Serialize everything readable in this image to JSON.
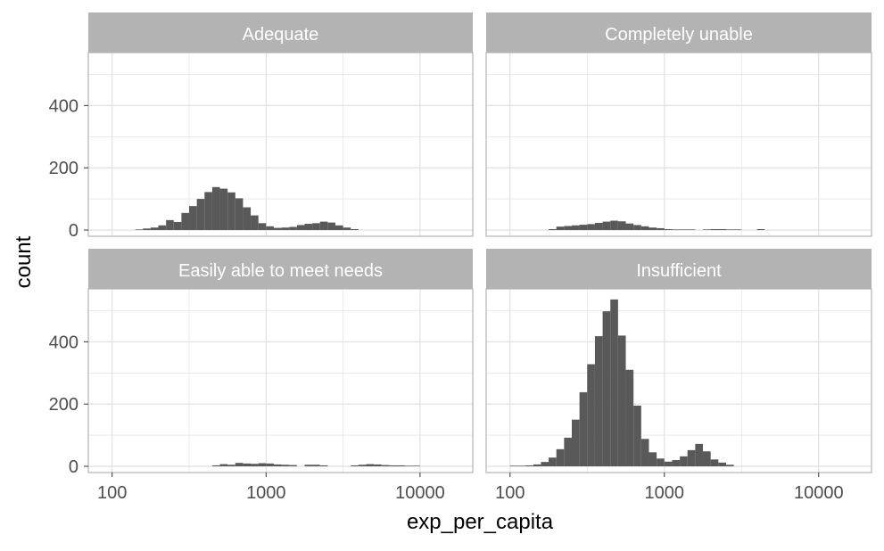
{
  "chart_data": {
    "type": "bar",
    "xlabel": "exp_per_capita",
    "ylabel": "count",
    "x_scale": "log10",
    "xlim": [
      70,
      22000
    ],
    "ylim": [
      -20,
      570
    ],
    "x_ticks": [
      100,
      1000,
      10000
    ],
    "x_tick_labels": [
      "100",
      "1000",
      "10000"
    ],
    "y_ticks": [
      0,
      200,
      400
    ],
    "y_tick_labels": [
      "0",
      "200",
      "400"
    ],
    "grid": true,
    "facets": [
      {
        "label": "Adequate",
        "bins": [
          {
            "x0": 141.3,
            "x1": 158.5,
            "count": 2
          },
          {
            "x0": 158.5,
            "x1": 177.8,
            "count": 5
          },
          {
            "x0": 177.8,
            "x1": 199.5,
            "count": 8
          },
          {
            "x0": 199.5,
            "x1": 223.9,
            "count": 15
          },
          {
            "x0": 223.9,
            "x1": 251.2,
            "count": 32
          },
          {
            "x0": 251.2,
            "x1": 281.8,
            "count": 26
          },
          {
            "x0": 281.8,
            "x1": 316.2,
            "count": 55
          },
          {
            "x0": 316.2,
            "x1": 354.8,
            "count": 77
          },
          {
            "x0": 354.8,
            "x1": 398.1,
            "count": 100
          },
          {
            "x0": 398.1,
            "x1": 446.7,
            "count": 122
          },
          {
            "x0": 446.7,
            "x1": 501.2,
            "count": 138
          },
          {
            "x0": 501.2,
            "x1": 562.3,
            "count": 133
          },
          {
            "x0": 562.3,
            "x1": 631.0,
            "count": 121
          },
          {
            "x0": 631.0,
            "x1": 707.9,
            "count": 102
          },
          {
            "x0": 707.9,
            "x1": 794.3,
            "count": 73
          },
          {
            "x0": 794.3,
            "x1": 891.3,
            "count": 47
          },
          {
            "x0": 891.3,
            "x1": 1000.0,
            "count": 22
          },
          {
            "x0": 1000.0,
            "x1": 1122.0,
            "count": 12
          },
          {
            "x0": 1122.0,
            "x1": 1258.9,
            "count": 7
          },
          {
            "x0": 1258.9,
            "x1": 1412.5,
            "count": 8
          },
          {
            "x0": 1412.5,
            "x1": 1584.9,
            "count": 10
          },
          {
            "x0": 1584.9,
            "x1": 1778.3,
            "count": 16
          },
          {
            "x0": 1778.3,
            "x1": 1995.3,
            "count": 20
          },
          {
            "x0": 1995.3,
            "x1": 2238.7,
            "count": 22
          },
          {
            "x0": 2238.7,
            "x1": 2511.9,
            "count": 27
          },
          {
            "x0": 2511.9,
            "x1": 2818.4,
            "count": 24
          },
          {
            "x0": 2818.4,
            "x1": 3162.3,
            "count": 15
          },
          {
            "x0": 3162.3,
            "x1": 3548.1,
            "count": 8
          },
          {
            "x0": 3548.1,
            "x1": 3981.1,
            "count": 3
          }
        ]
      },
      {
        "label": "Completely unable",
        "bins": [
          {
            "x0": 177.8,
            "x1": 199.5,
            "count": 3
          },
          {
            "x0": 199.5,
            "x1": 223.9,
            "count": 11
          },
          {
            "x0": 223.9,
            "x1": 251.2,
            "count": 13
          },
          {
            "x0": 251.2,
            "x1": 281.8,
            "count": 15
          },
          {
            "x0": 281.8,
            "x1": 316.2,
            "count": 17
          },
          {
            "x0": 316.2,
            "x1": 354.8,
            "count": 19
          },
          {
            "x0": 354.8,
            "x1": 398.1,
            "count": 23
          },
          {
            "x0": 398.1,
            "x1": 446.7,
            "count": 27
          },
          {
            "x0": 446.7,
            "x1": 501.2,
            "count": 30
          },
          {
            "x0": 501.2,
            "x1": 562.3,
            "count": 28
          },
          {
            "x0": 562.3,
            "x1": 631.0,
            "count": 21
          },
          {
            "x0": 631.0,
            "x1": 707.9,
            "count": 16
          },
          {
            "x0": 707.9,
            "x1": 794.3,
            "count": 12
          },
          {
            "x0": 794.3,
            "x1": 891.3,
            "count": 8
          },
          {
            "x0": 891.3,
            "x1": 1000.0,
            "count": 6
          },
          {
            "x0": 1000.0,
            "x1": 1122.0,
            "count": 3
          },
          {
            "x0": 1122.0,
            "x1": 1258.9,
            "count": 2
          },
          {
            "x0": 1258.9,
            "x1": 1412.5,
            "count": 2
          },
          {
            "x0": 1412.5,
            "x1": 1584.9,
            "count": 2
          },
          {
            "x0": 1778.3,
            "x1": 1995.3,
            "count": 2
          },
          {
            "x0": 1995.3,
            "x1": 2238.7,
            "count": 3
          },
          {
            "x0": 2238.7,
            "x1": 2511.9,
            "count": 3
          },
          {
            "x0": 2511.9,
            "x1": 2818.4,
            "count": 2
          },
          {
            "x0": 2818.4,
            "x1": 3162.3,
            "count": 2
          },
          {
            "x0": 3981.1,
            "x1": 4466.8,
            "count": 3
          }
        ]
      },
      {
        "label": "Easily able to meet needs",
        "bins": [
          {
            "x0": 446.7,
            "x1": 501.2,
            "count": 3
          },
          {
            "x0": 501.2,
            "x1": 562.3,
            "count": 7
          },
          {
            "x0": 562.3,
            "x1": 631.0,
            "count": 5
          },
          {
            "x0": 631.0,
            "x1": 707.9,
            "count": 11
          },
          {
            "x0": 707.9,
            "x1": 794.3,
            "count": 9
          },
          {
            "x0": 794.3,
            "x1": 891.3,
            "count": 8
          },
          {
            "x0": 891.3,
            "x1": 1000.0,
            "count": 10
          },
          {
            "x0": 1000.0,
            "x1": 1122.0,
            "count": 9
          },
          {
            "x0": 1122.0,
            "x1": 1258.9,
            "count": 6
          },
          {
            "x0": 1258.9,
            "x1": 1412.5,
            "count": 5
          },
          {
            "x0": 1412.5,
            "x1": 1584.9,
            "count": 4
          },
          {
            "x0": 1778.3,
            "x1": 1995.3,
            "count": 5
          },
          {
            "x0": 1995.3,
            "x1": 2238.7,
            "count": 5
          },
          {
            "x0": 2238.7,
            "x1": 2511.9,
            "count": 3
          },
          {
            "x0": 3548.1,
            "x1": 3981.1,
            "count": 3
          },
          {
            "x0": 3981.1,
            "x1": 4466.8,
            "count": 5
          },
          {
            "x0": 4466.8,
            "x1": 5011.9,
            "count": 7
          },
          {
            "x0": 5011.9,
            "x1": 5623.4,
            "count": 6
          },
          {
            "x0": 5623.4,
            "x1": 6309.6,
            "count": 4
          },
          {
            "x0": 6309.6,
            "x1": 7079.5,
            "count": 3
          },
          {
            "x0": 7079.5,
            "x1": 7943.3,
            "count": 3
          },
          {
            "x0": 7943.3,
            "x1": 8912.5,
            "count": 2
          },
          {
            "x0": 8912.5,
            "x1": 10000.0,
            "count": 2
          }
        ]
      },
      {
        "label": "Insufficient",
        "bins": [
          {
            "x0": 100.0,
            "x1": 112.2,
            "count": 2
          },
          {
            "x0": 112.2,
            "x1": 125.9,
            "count": 2
          },
          {
            "x0": 125.9,
            "x1": 141.3,
            "count": 3
          },
          {
            "x0": 141.3,
            "x1": 158.5,
            "count": 6
          },
          {
            "x0": 158.5,
            "x1": 177.8,
            "count": 14
          },
          {
            "x0": 177.8,
            "x1": 199.5,
            "count": 28
          },
          {
            "x0": 199.5,
            "x1": 223.9,
            "count": 55
          },
          {
            "x0": 223.9,
            "x1": 251.2,
            "count": 92
          },
          {
            "x0": 251.2,
            "x1": 281.8,
            "count": 150
          },
          {
            "x0": 281.8,
            "x1": 316.2,
            "count": 238
          },
          {
            "x0": 316.2,
            "x1": 354.8,
            "count": 328
          },
          {
            "x0": 354.8,
            "x1": 398.1,
            "count": 418
          },
          {
            "x0": 398.1,
            "x1": 446.7,
            "count": 498
          },
          {
            "x0": 446.7,
            "x1": 501.2,
            "count": 536
          },
          {
            "x0": 501.2,
            "x1": 562.3,
            "count": 420
          },
          {
            "x0": 562.3,
            "x1": 631.0,
            "count": 310
          },
          {
            "x0": 631.0,
            "x1": 707.9,
            "count": 195
          },
          {
            "x0": 707.9,
            "x1": 794.3,
            "count": 88
          },
          {
            "x0": 794.3,
            "x1": 891.3,
            "count": 45
          },
          {
            "x0": 891.3,
            "x1": 1000.0,
            "count": 25
          },
          {
            "x0": 1000.0,
            "x1": 1122.0,
            "count": 15
          },
          {
            "x0": 1122.0,
            "x1": 1258.9,
            "count": 20
          },
          {
            "x0": 1258.9,
            "x1": 1412.5,
            "count": 32
          },
          {
            "x0": 1412.5,
            "x1": 1584.9,
            "count": 52
          },
          {
            "x0": 1584.9,
            "x1": 1778.3,
            "count": 72
          },
          {
            "x0": 1778.3,
            "x1": 1995.3,
            "count": 48
          },
          {
            "x0": 1995.3,
            "x1": 2238.7,
            "count": 22
          },
          {
            "x0": 2238.7,
            "x1": 2511.9,
            "count": 12
          },
          {
            "x0": 2511.9,
            "x1": 2818.4,
            "count": 5
          }
        ]
      }
    ]
  },
  "colors": {
    "bar": "#595959",
    "strip": "#b3b3b3",
    "strip_text": "#ffffff",
    "grid": "#dedede",
    "panel_border": "#b3b3b3",
    "axis_text": "#4d4d4d",
    "title_text": "#000000"
  }
}
